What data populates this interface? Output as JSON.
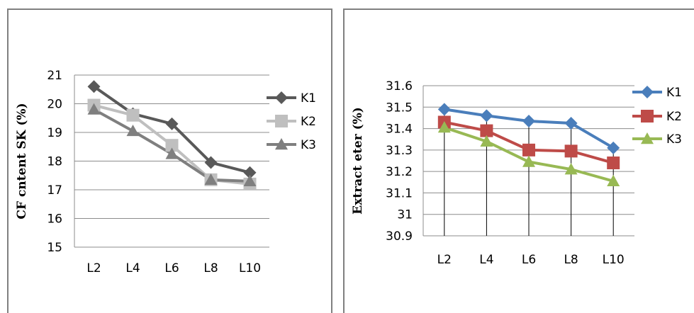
{
  "chart_data": [
    {
      "type": "line",
      "xlabel": "",
      "ylabel": "CF cntent SK (%)",
      "ylim": [
        15,
        21
      ],
      "yticks": [
        "15",
        "16",
        "17",
        "18",
        "19",
        "20",
        "21"
      ],
      "categories": [
        "L2",
        "L4",
        "L6",
        "L8",
        "L10"
      ],
      "grid": true,
      "legend_position": "right",
      "series": [
        {
          "name": "K1",
          "values": [
            20.6,
            19.65,
            19.3,
            17.95,
            17.6
          ],
          "color": "#595959",
          "marker": "diamond"
        },
        {
          "name": "K2",
          "values": [
            19.95,
            19.6,
            18.55,
            17.35,
            17.2
          ],
          "color": "#bfbfbf",
          "marker": "square"
        },
        {
          "name": "K3",
          "values": [
            19.8,
            19.05,
            18.25,
            17.35,
            17.3
          ],
          "color": "#7f7f7f",
          "marker": "triangle"
        }
      ]
    },
    {
      "type": "line",
      "xlabel": "",
      "ylabel": "Extract eter (%)",
      "ylim": [
        30.9,
        31.6
      ],
      "yticks": [
        "30.9",
        "31",
        "31.1",
        "31.2",
        "31.3",
        "31.4",
        "31.5",
        "31.6"
      ],
      "categories": [
        "L2",
        "L4",
        "L6",
        "L8",
        "L10"
      ],
      "grid": true,
      "legend_position": "right",
      "series": [
        {
          "name": "K1",
          "values": [
            31.49,
            31.46,
            31.435,
            31.425,
            31.31
          ],
          "color": "#4a7ebb",
          "marker": "diamond"
        },
        {
          "name": "K2",
          "values": [
            31.43,
            31.39,
            31.3,
            31.295,
            31.24
          ],
          "color": "#be4b48",
          "marker": "square"
        },
        {
          "name": "K3",
          "values": [
            31.405,
            31.34,
            31.245,
            31.21,
            31.155
          ],
          "color": "#98b954",
          "marker": "triangle"
        }
      ]
    }
  ]
}
